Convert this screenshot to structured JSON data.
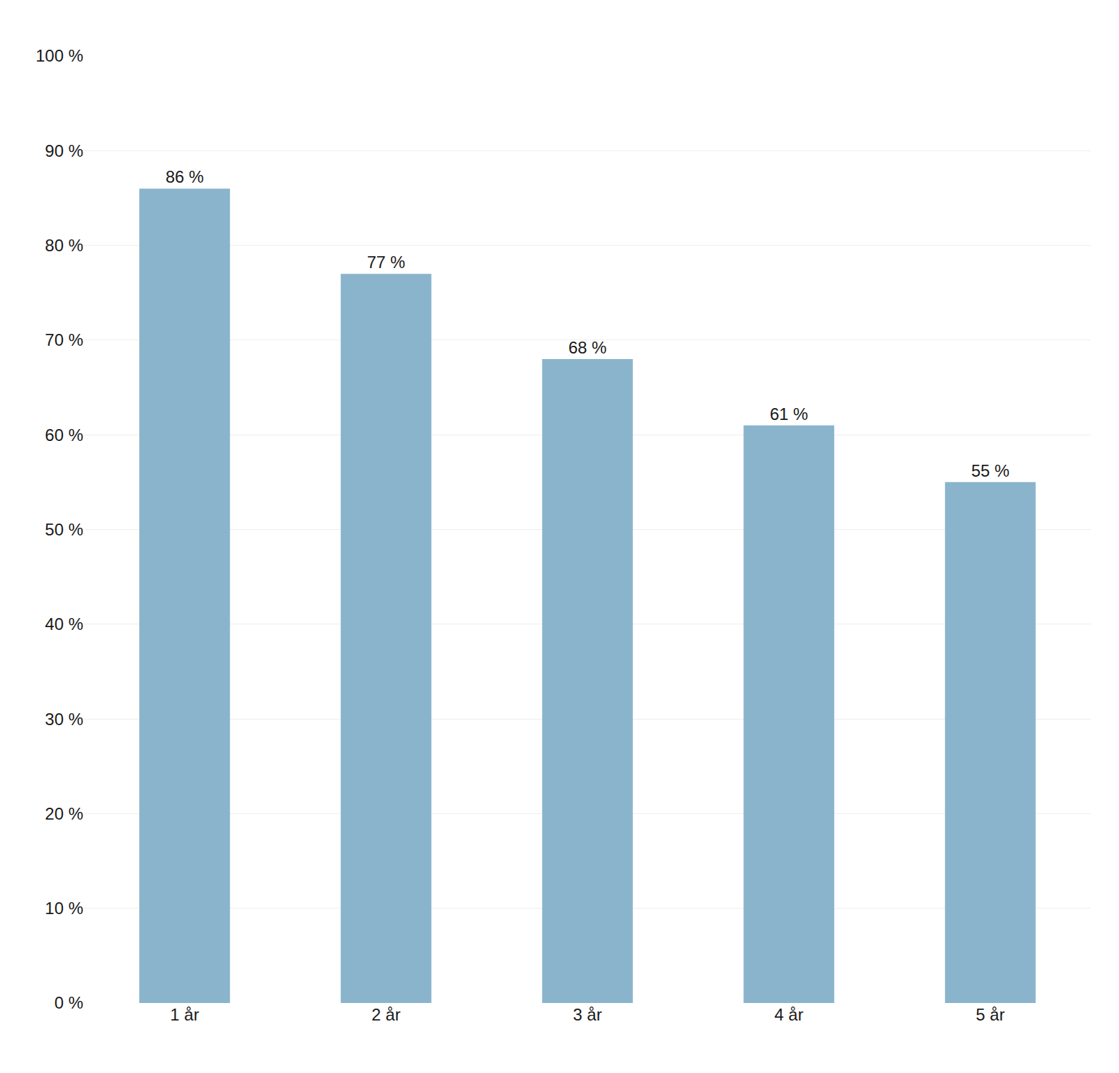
{
  "chart_data": {
    "type": "bar",
    "categories": [
      "1 år",
      "2 år",
      "3 år",
      "4 år",
      "5 år"
    ],
    "values": [
      86,
      77,
      68,
      61,
      55
    ],
    "value_labels": [
      "86 %",
      "77 %",
      "68 %",
      "61 %",
      "55 %"
    ],
    "data_labels": true,
    "color": "#8ab4cc",
    "ylim": [
      0,
      100
    ],
    "yticks": [
      {
        "value": 0,
        "label": "0 %"
      },
      {
        "value": 10,
        "label": "10 %"
      },
      {
        "value": 20,
        "label": "20 %"
      },
      {
        "value": 30,
        "label": "30 %"
      },
      {
        "value": 40,
        "label": "40 %"
      },
      {
        "value": 50,
        "label": "50 %"
      },
      {
        "value": 60,
        "label": "60 %"
      },
      {
        "value": 70,
        "label": "70 %"
      },
      {
        "value": 80,
        "label": "80 %"
      },
      {
        "value": 90,
        "label": "90 %"
      },
      {
        "value": 100,
        "label": "100 %"
      }
    ],
    "grid": true
  }
}
